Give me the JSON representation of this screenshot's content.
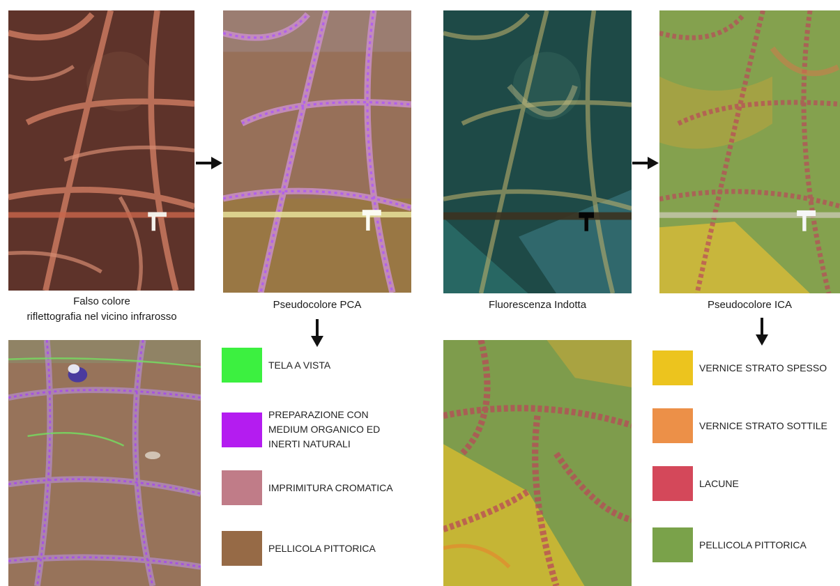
{
  "captions": {
    "falso": [
      "Falso colore",
      "riflettografia nel vicino infrarosso"
    ],
    "pca": "Pseudocolore PCA",
    "fluo": "Fluorescenza Indotta",
    "ica": "Pseudocolore ICA"
  },
  "legend_pca": [
    {
      "lines": [
        "TELA A VISTA"
      ],
      "color": "#3cf040"
    },
    {
      "lines": [
        "PREPARAZIONE CON",
        "MEDIUM ORGANICO ED",
        "INERTI NATURALI"
      ],
      "color": "#b41cf0"
    },
    {
      "lines": [
        "IMPRIMITURA CROMATICA"
      ],
      "color": "#c07c88"
    },
    {
      "lines": [
        "PELLICOLA PITTORICA"
      ],
      "color": "#966a46"
    }
  ],
  "legend_ica": [
    {
      "lines": [
        "VERNICE STRATO SPESSO"
      ],
      "color": "#ecc41e"
    },
    {
      "lines": [
        "VERNICE STRATO SOTTILE"
      ],
      "color": "#ec9048"
    },
    {
      "lines": [
        "LACUNE"
      ],
      "color": "#d4485a"
    },
    {
      "lines": [
        "PELLICOLA PITTORICA"
      ],
      "color": "#7aa24a"
    }
  ],
  "icons": {
    "arrow_right": "arrow-right-icon",
    "arrow_down": "arrow-down-icon"
  }
}
